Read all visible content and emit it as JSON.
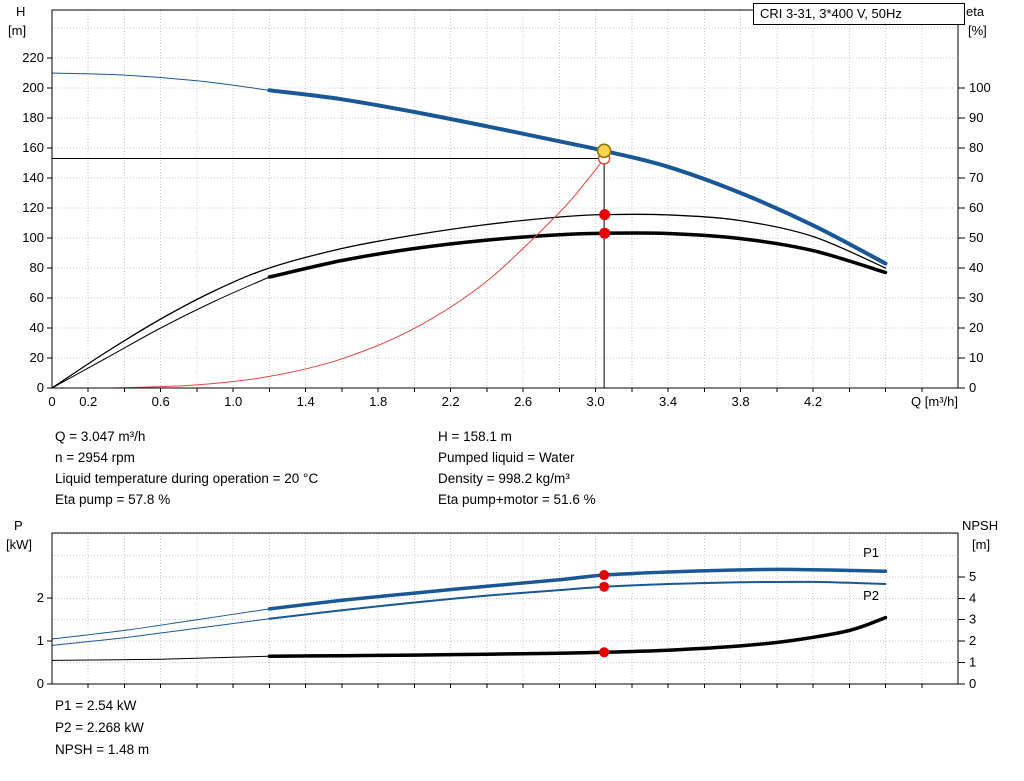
{
  "duty_info": {
    "left": [
      "Q = 3.047 m³/h",
      "n = 2954 rpm",
      "Liquid temperature during operation = 20 °C",
      "Eta pump = 57.8 %"
    ],
    "right": [
      "H = 158.1 m",
      "Pumped liquid = Water",
      "Density = 998.2 kg/m³",
      "Eta pump+motor = 51.6 %"
    ],
    "bottom": [
      "P1 = 2.54 kW",
      "P2 = 2.268 kW",
      "NPSH = 1.48 m"
    ]
  },
  "colors": {
    "curve_blue": "#1a5796",
    "curve_black": "#000000",
    "curve_red": "#e5443a",
    "dot_red": "#e60000",
    "duty_fill": "#ffd34d",
    "duty_ring": "#8a7500",
    "label_blue": "#1a6ab0",
    "grid": "#c9c9c9"
  },
  "chart_data": [
    {
      "id": "hq-efficiency-chart",
      "type": "line",
      "title": "CRI 3-31, 3*400 V, 50Hz",
      "x_axis": {
        "label": "Q [m³/h]",
        "min": 0,
        "max": 5.0,
        "minor_step": 0.2,
        "tick_labels": [
          "0",
          "0.2",
          "0.6",
          "1.0",
          "1.4",
          "1.8",
          "2.2",
          "2.6",
          "3.0",
          "3.4",
          "3.8",
          "4.2"
        ]
      },
      "y_left": {
        "label_1": "H",
        "label_2": "[m]",
        "min": 0,
        "max": 252,
        "grid_step": 20,
        "ticks": [
          "0",
          "20",
          "40",
          "60",
          "80",
          "100",
          "120",
          "140",
          "160",
          "180",
          "200",
          "220"
        ]
      },
      "y_right": {
        "label_1": "eta",
        "label_2": "[%]",
        "min": 0,
        "max": 126,
        "ticks": [
          "0",
          "10",
          "20",
          "30",
          "40",
          "50",
          "60",
          "70",
          "80",
          "90",
          "100"
        ]
      },
      "series": [
        {
          "name": "pump-curve-preliminary",
          "axis": "left",
          "color": "curve_blue",
          "width": 1,
          "points": [
            [
              0,
              210
            ],
            [
              0.4,
              208.6
            ],
            [
              0.8,
              204.8
            ],
            [
              1.2,
              198.5
            ]
          ]
        },
        {
          "name": "pump-curve",
          "axis": "left",
          "color": "curve_blue",
          "width": 4,
          "points": [
            [
              1.2,
              198.5
            ],
            [
              1.6,
              192.5
            ],
            [
              2.0,
              184
            ],
            [
              2.4,
              174.5
            ],
            [
              2.8,
              164.5
            ],
            [
              3.047,
              158.1
            ],
            [
              3.4,
              147.5
            ],
            [
              3.8,
              130
            ],
            [
              4.2,
              108.5
            ],
            [
              4.6,
              83
            ]
          ]
        },
        {
          "name": "eta-pump-curve",
          "axis": "right",
          "color": "curve_black",
          "width": 1.3,
          "points": [
            [
              0,
              0
            ],
            [
              0.3,
              12
            ],
            [
              0.6,
              23
            ],
            [
              0.9,
              32.5
            ],
            [
              1.2,
              40
            ],
            [
              1.6,
              46.5
            ],
            [
              2.0,
              51
            ],
            [
              2.4,
              54.5
            ],
            [
              2.8,
              57
            ],
            [
              3.047,
              57.8
            ],
            [
              3.4,
              57.7
            ],
            [
              3.8,
              55.8
            ],
            [
              4.2,
              50.5
            ],
            [
              4.6,
              40
            ]
          ]
        },
        {
          "name": "eta-pump-motor-preliminary",
          "axis": "right",
          "color": "curve_black",
          "width": 1,
          "points": [
            [
              0,
              0
            ],
            [
              0.3,
              10
            ],
            [
              0.6,
              20
            ],
            [
              0.9,
              29
            ],
            [
              1.2,
              37
            ]
          ]
        },
        {
          "name": "eta-pump-motor-curve",
          "axis": "right",
          "color": "curve_black",
          "width": 3.5,
          "points": [
            [
              1.2,
              37
            ],
            [
              1.6,
              42.5
            ],
            [
              2.0,
              46.5
            ],
            [
              2.4,
              49.3
            ],
            [
              2.8,
              51.1
            ],
            [
              3.047,
              51.6
            ],
            [
              3.4,
              51.5
            ],
            [
              3.8,
              49.8
            ],
            [
              4.2,
              45.8
            ],
            [
              4.6,
              38.5
            ]
          ]
        },
        {
          "name": "system-curve",
          "axis": "left",
          "color": "curve_red",
          "width": 1,
          "points": [
            [
              0.15,
              0.02
            ],
            [
              0.4,
              0.2
            ],
            [
              0.8,
              2.1
            ],
            [
              1.2,
              7.7
            ],
            [
              1.6,
              19.5
            ],
            [
              2.0,
              39.8
            ],
            [
              2.4,
              71.3
            ],
            [
              2.8,
              117
            ],
            [
              2.95,
              138
            ],
            [
              3.047,
              153
            ]
          ]
        }
      ],
      "crosshair": {
        "x": 3.047,
        "vertical_top": 158.1,
        "horizontal_y": 153
      },
      "markers": [
        {
          "name": "system-duty-point",
          "x": 3.047,
          "y": 153,
          "axis": "left",
          "style": "red-open",
          "r": 5.5
        },
        {
          "name": "duty-point",
          "x": 3.047,
          "y": 158.1,
          "axis": "left",
          "style": "yellow-ring",
          "r": 6.5
        },
        {
          "name": "eta-pump-duty",
          "x": 3.05,
          "y": 57.8,
          "axis": "right",
          "style": "red-dot",
          "r": 5.5
        },
        {
          "name": "eta-pump-motor-duty",
          "x": 3.05,
          "y": 51.6,
          "axis": "right",
          "style": "red-dot",
          "r": 5.5
        }
      ],
      "annotations": []
    },
    {
      "id": "power-npsh-chart",
      "type": "line",
      "title": "",
      "x_axis": {
        "label": "",
        "min": 0,
        "max": 5.0,
        "minor_step": 0.2,
        "tick_labels": []
      },
      "y_left": {
        "label_1": "P",
        "label_2": "[kW]",
        "min": 0,
        "max": 3.52,
        "ticks": [
          "0",
          "1",
          "2"
        ]
      },
      "y_right": {
        "label_1": "NPSH",
        "label_2": "[m]",
        "min": 0,
        "max": 7.05,
        "grid_step": 1,
        "ticks": [
          "0",
          "1",
          "2",
          "3",
          "4",
          "5"
        ]
      },
      "series": [
        {
          "name": "p1-curve-preliminary",
          "axis": "left",
          "color": "curve_blue",
          "width": 1,
          "points": [
            [
              0,
              1.05
            ],
            [
              0.4,
              1.25
            ],
            [
              0.8,
              1.5
            ],
            [
              1.2,
              1.75
            ]
          ]
        },
        {
          "name": "p1-curve",
          "axis": "left",
          "color": "curve_blue",
          "width": 3.5,
          "points": [
            [
              1.2,
              1.75
            ],
            [
              1.6,
              1.95
            ],
            [
              2.0,
              2.12
            ],
            [
              2.4,
              2.28
            ],
            [
              2.8,
              2.43
            ],
            [
              3.047,
              2.54
            ],
            [
              3.4,
              2.61
            ],
            [
              3.8,
              2.66
            ],
            [
              4.1,
              2.67
            ],
            [
              4.6,
              2.63
            ]
          ]
        },
        {
          "name": "p2-curve-preliminary",
          "axis": "left",
          "color": "curve_blue",
          "width": 1,
          "points": [
            [
              0,
              0.9
            ],
            [
              0.4,
              1.08
            ],
            [
              0.8,
              1.3
            ],
            [
              1.2,
              1.52
            ]
          ]
        },
        {
          "name": "p2-curve",
          "axis": "left",
          "color": "curve_blue",
          "width": 2,
          "points": [
            [
              1.2,
              1.52
            ],
            [
              1.6,
              1.72
            ],
            [
              2.0,
              1.9
            ],
            [
              2.4,
              2.06
            ],
            [
              2.8,
              2.19
            ],
            [
              3.047,
              2.268
            ],
            [
              3.4,
              2.33
            ],
            [
              3.8,
              2.37
            ],
            [
              4.2,
              2.38
            ],
            [
              4.6,
              2.33
            ]
          ]
        },
        {
          "name": "npsh-curve-preliminary",
          "axis": "right",
          "color": "curve_black",
          "width": 1,
          "points": [
            [
              0,
              1.1
            ],
            [
              0.6,
              1.16
            ],
            [
              1.2,
              1.3
            ]
          ]
        },
        {
          "name": "npsh-curve",
          "axis": "right",
          "color": "curve_black",
          "width": 3.5,
          "points": [
            [
              1.2,
              1.3
            ],
            [
              1.6,
              1.32
            ],
            [
              2.0,
              1.35
            ],
            [
              2.4,
              1.39
            ],
            [
              2.8,
              1.44
            ],
            [
              3.047,
              1.48
            ],
            [
              3.4,
              1.58
            ],
            [
              3.8,
              1.78
            ],
            [
              4.1,
              2.05
            ],
            [
              4.4,
              2.5
            ],
            [
              4.6,
              3.1
            ]
          ]
        }
      ],
      "markers": [
        {
          "name": "p1-duty",
          "x": 3.047,
          "y": 2.54,
          "axis": "left",
          "style": "red-dot",
          "r": 5
        },
        {
          "name": "p2-duty",
          "x": 3.047,
          "y": 2.268,
          "axis": "left",
          "style": "red-dot",
          "r": 5
        },
        {
          "name": "npsh-duty",
          "x": 3.047,
          "y": 1.48,
          "axis": "right",
          "style": "red-dot",
          "r": 5
        }
      ],
      "annotations": [
        {
          "name": "p1-label",
          "text": "P1",
          "x": 4.52,
          "y": 3.05,
          "axis": "left",
          "color": "label_blue"
        },
        {
          "name": "p2-label",
          "text": "P2",
          "x": 4.52,
          "y": 2.05,
          "axis": "left",
          "color": "label_blue"
        }
      ]
    }
  ]
}
